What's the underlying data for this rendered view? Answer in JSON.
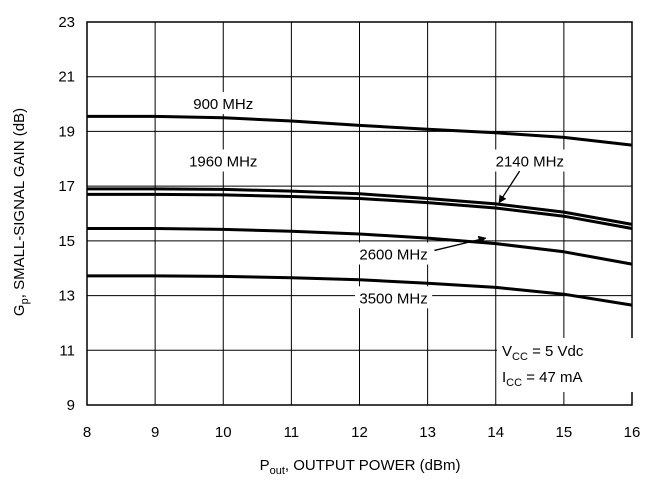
{
  "chart_data": {
    "type": "line",
    "xlim": [
      8,
      16
    ],
    "ylim": [
      9,
      23
    ],
    "x_ticks": [
      8,
      9,
      10,
      11,
      12,
      13,
      14,
      15,
      16
    ],
    "y_ticks": [
      9,
      11,
      13,
      15,
      17,
      19,
      21,
      23
    ],
    "grid": true,
    "xlabel": {
      "main": "P",
      "sub": "out",
      "rest": ", OUTPUT POWER (dBm)"
    },
    "ylabel": {
      "main": "G",
      "sub": "p",
      "rest": ", SMALL-SIGNAL GAIN (dB)"
    },
    "conditions": [
      {
        "main": "V",
        "sub": "CC",
        "rest": " = 5 Vdc"
      },
      {
        "main": "I",
        "sub": "CC",
        "rest": " = 47 mA"
      }
    ],
    "series": [
      {
        "name": "900 MHz",
        "x": [
          8,
          9,
          10,
          11,
          12,
          13,
          14,
          15,
          16
        ],
        "values": [
          19.55,
          19.55,
          19.5,
          19.38,
          19.22,
          19.08,
          18.95,
          18.78,
          18.5
        ]
      },
      {
        "name": "1960 MHz",
        "x": [
          8,
          9,
          10,
          11,
          12,
          13,
          14,
          15,
          16
        ],
        "values": [
          16.7,
          16.7,
          16.68,
          16.62,
          16.55,
          16.4,
          16.2,
          15.9,
          15.45
        ]
      },
      {
        "name": "2140 MHz",
        "x": [
          8,
          9,
          10,
          11,
          12,
          13,
          14,
          15,
          16
        ],
        "values": [
          16.9,
          16.9,
          16.88,
          16.82,
          16.72,
          16.55,
          16.35,
          16.05,
          15.6
        ]
      },
      {
        "name": "2600 MHz",
        "x": [
          8,
          9,
          10,
          11,
          12,
          13,
          14,
          15,
          16
        ],
        "values": [
          15.45,
          15.45,
          15.42,
          15.35,
          15.25,
          15.1,
          14.9,
          14.6,
          14.15
        ]
      },
      {
        "name": "3500 MHz",
        "x": [
          8,
          9,
          10,
          11,
          12,
          13,
          14,
          15,
          16
        ],
        "values": [
          13.72,
          13.72,
          13.7,
          13.65,
          13.58,
          13.45,
          13.3,
          13.05,
          12.65
        ]
      }
    ]
  }
}
